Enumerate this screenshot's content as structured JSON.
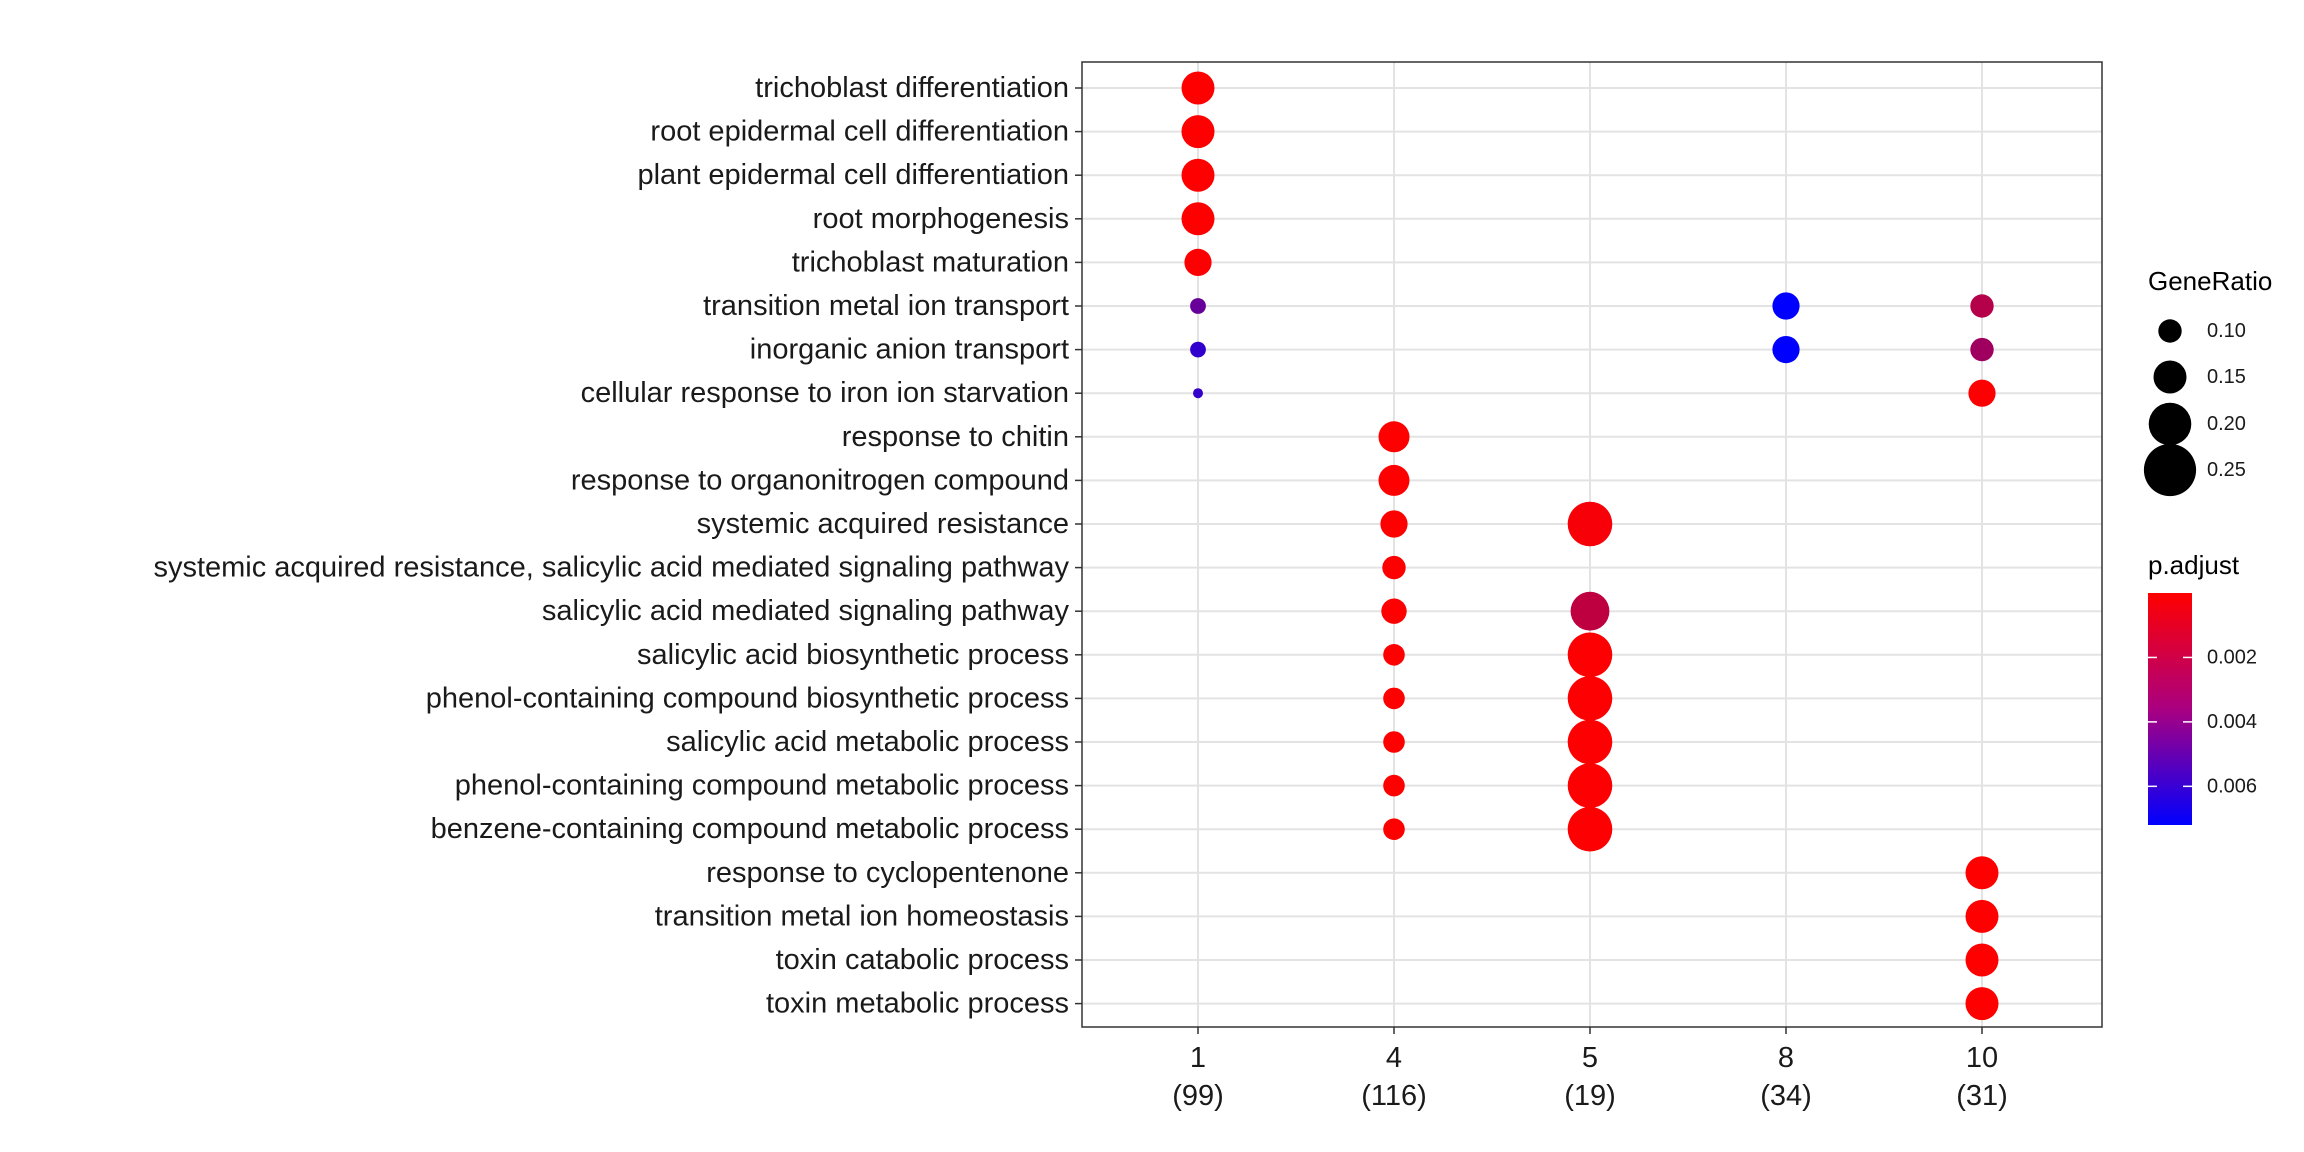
{
  "chart_data": {
    "type": "scatter",
    "x_categories": [
      {
        "label": "1",
        "count": "(99)"
      },
      {
        "label": "4",
        "count": "(116)"
      },
      {
        "label": "5",
        "count": "(19)"
      },
      {
        "label": "8",
        "count": "(34)"
      },
      {
        "label": "10",
        "count": "(31)"
      }
    ],
    "y_categories": [
      "trichoblast differentiation",
      "root epidermal cell differentiation",
      "plant epidermal cell differentiation",
      "root morphogenesis",
      "trichoblast maturation",
      "transition metal ion transport",
      "inorganic anion transport",
      "cellular response to iron ion starvation",
      "response to chitin",
      "response to organonitrogen compound",
      "systemic acquired resistance",
      "systemic acquired resistance, salicylic acid mediated signaling pathway",
      "salicylic acid mediated signaling pathway",
      "salicylic acid biosynthetic process",
      "phenol-containing compound biosynthetic process",
      "salicylic acid metabolic process",
      "phenol-containing compound metabolic process",
      "benzene-containing compound metabolic process",
      "response to cyclopentenone",
      "transition metal ion homeostasis",
      "toxin catabolic process",
      "toxin metabolic process"
    ],
    "points": [
      {
        "x": "1",
        "y": "trichoblast differentiation",
        "gene_ratio": 0.15,
        "p_adjust": 1e-05
      },
      {
        "x": "1",
        "y": "root epidermal cell differentiation",
        "gene_ratio": 0.15,
        "p_adjust": 1e-05
      },
      {
        "x": "1",
        "y": "plant epidermal cell differentiation",
        "gene_ratio": 0.15,
        "p_adjust": 1e-05
      },
      {
        "x": "1",
        "y": "root morphogenesis",
        "gene_ratio": 0.15,
        "p_adjust": 1e-05
      },
      {
        "x": "1",
        "y": "trichoblast maturation",
        "gene_ratio": 0.12,
        "p_adjust": 5e-05
      },
      {
        "x": "1",
        "y": "transition metal ion transport",
        "gene_ratio": 0.06,
        "p_adjust": 0.0043
      },
      {
        "x": "1",
        "y": "inorganic anion transport",
        "gene_ratio": 0.06,
        "p_adjust": 0.0058
      },
      {
        "x": "1",
        "y": "cellular response to iron ion starvation",
        "gene_ratio": 0.03,
        "p_adjust": 0.0057
      },
      {
        "x": "4",
        "y": "response to chitin",
        "gene_ratio": 0.14,
        "p_adjust": 1e-05
      },
      {
        "x": "4",
        "y": "response to organonitrogen compound",
        "gene_ratio": 0.14,
        "p_adjust": 1e-05
      },
      {
        "x": "4",
        "y": "systemic acquired resistance",
        "gene_ratio": 0.12,
        "p_adjust": 1e-05
      },
      {
        "x": "4",
        "y": "systemic acquired resistance, salicylic acid mediated signaling pathway",
        "gene_ratio": 0.1,
        "p_adjust": 1e-05
      },
      {
        "x": "4",
        "y": "salicylic acid mediated signaling pathway",
        "gene_ratio": 0.11,
        "p_adjust": 1e-05
      },
      {
        "x": "4",
        "y": "salicylic acid biosynthetic process",
        "gene_ratio": 0.09,
        "p_adjust": 1e-05
      },
      {
        "x": "4",
        "y": "phenol-containing compound biosynthetic process",
        "gene_ratio": 0.09,
        "p_adjust": 1e-05
      },
      {
        "x": "4",
        "y": "salicylic acid metabolic process",
        "gene_ratio": 0.09,
        "p_adjust": 1e-05
      },
      {
        "x": "4",
        "y": "phenol-containing compound metabolic process",
        "gene_ratio": 0.09,
        "p_adjust": 1e-05
      },
      {
        "x": "4",
        "y": "benzene-containing compound metabolic process",
        "gene_ratio": 0.09,
        "p_adjust": 1e-05
      },
      {
        "x": "5",
        "y": "systemic acquired resistance",
        "gene_ratio": 0.21,
        "p_adjust": 0.0002
      },
      {
        "x": "5",
        "y": "salicylic acid mediated signaling pathway",
        "gene_ratio": 0.18,
        "p_adjust": 0.0018
      },
      {
        "x": "5",
        "y": "salicylic acid biosynthetic process",
        "gene_ratio": 0.21,
        "p_adjust": 5e-05
      },
      {
        "x": "5",
        "y": "phenol-containing compound biosynthetic process",
        "gene_ratio": 0.21,
        "p_adjust": 5e-05
      },
      {
        "x": "5",
        "y": "salicylic acid metabolic process",
        "gene_ratio": 0.21,
        "p_adjust": 5e-05
      },
      {
        "x": "5",
        "y": "phenol-containing compound metabolic process",
        "gene_ratio": 0.21,
        "p_adjust": 5e-05
      },
      {
        "x": "5",
        "y": "benzene-containing compound metabolic process",
        "gene_ratio": 0.21,
        "p_adjust": 5e-05
      },
      {
        "x": "8",
        "y": "transition metal ion transport",
        "gene_ratio": 0.12,
        "p_adjust": 0.0072
      },
      {
        "x": "8",
        "y": "inorganic anion transport",
        "gene_ratio": 0.12,
        "p_adjust": 0.0072
      },
      {
        "x": "10",
        "y": "transition metal ion transport",
        "gene_ratio": 0.1,
        "p_adjust": 0.0021
      },
      {
        "x": "10",
        "y": "inorganic anion transport",
        "gene_ratio": 0.1,
        "p_adjust": 0.0027
      },
      {
        "x": "10",
        "y": "cellular response to iron ion starvation",
        "gene_ratio": 0.12,
        "p_adjust": 5e-05
      },
      {
        "x": "10",
        "y": "response to cyclopentenone",
        "gene_ratio": 0.15,
        "p_adjust": 1e-05
      },
      {
        "x": "10",
        "y": "transition metal ion homeostasis",
        "gene_ratio": 0.15,
        "p_adjust": 1e-05
      },
      {
        "x": "10",
        "y": "toxin catabolic process",
        "gene_ratio": 0.15,
        "p_adjust": 1e-05
      },
      {
        "x": "10",
        "y": "toxin metabolic process",
        "gene_ratio": 0.15,
        "p_adjust": 1e-05
      }
    ],
    "size_legend": {
      "title": "GeneRatio",
      "values": [
        0.1,
        0.15,
        0.2,
        0.25
      ],
      "labels": [
        "0.10",
        "0.15",
        "0.20",
        "0.25"
      ]
    },
    "color_legend": {
      "title": "p.adjust",
      "labels": [
        "0.002",
        "0.004",
        "0.006"
      ],
      "values": [
        0.002,
        0.004,
        0.006
      ],
      "range": [
        0.0,
        0.0072
      ],
      "low_color": "#ff0000",
      "high_color": "#0000ff"
    },
    "grid": true,
    "legend_placement": "right"
  }
}
